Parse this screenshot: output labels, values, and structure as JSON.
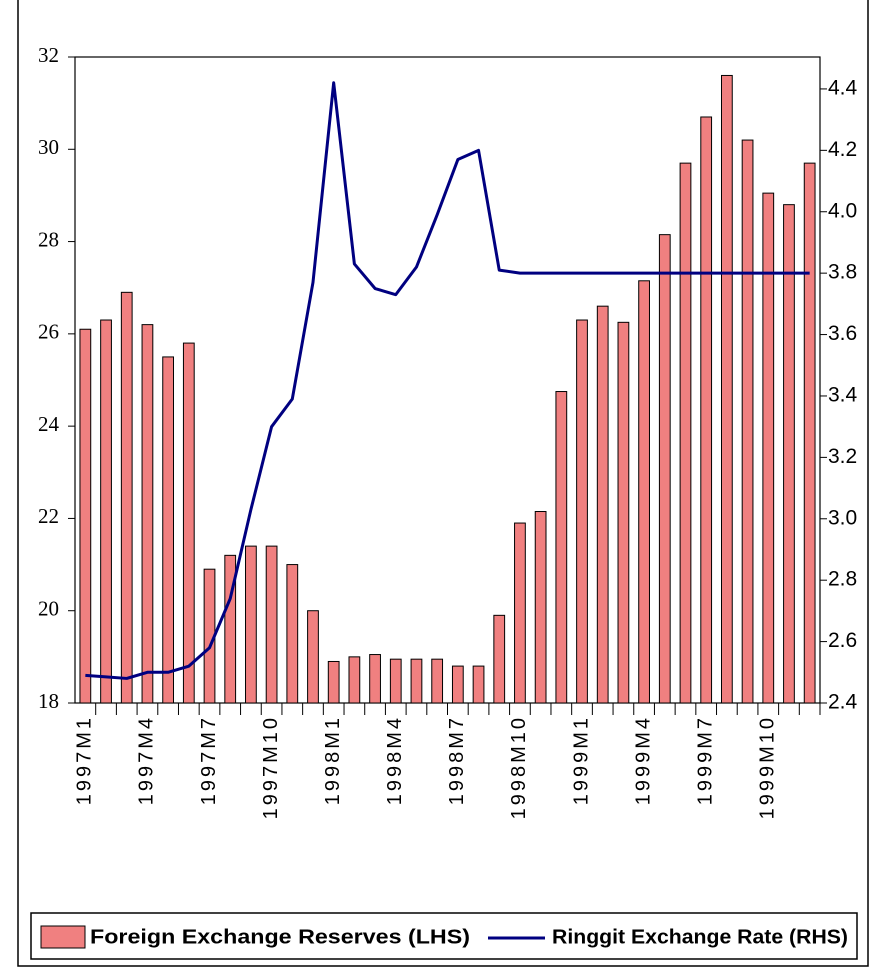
{
  "chart_data": {
    "type": "bar_line",
    "categories": [
      "1997M1",
      null,
      null,
      "1997M4",
      null,
      null,
      "1997M7",
      null,
      null,
      "1997M10",
      null,
      null,
      "1998M1",
      null,
      null,
      "1998M4",
      null,
      null,
      "1998M7",
      null,
      null,
      "1998M10",
      null,
      null,
      "1999M1",
      null,
      null,
      "1999M4",
      null,
      null,
      "1999M7",
      null,
      null,
      "1999M10",
      null,
      null
    ],
    "series": [
      {
        "name": "Foreign Exchange Reserves (LHS)",
        "type": "bar",
        "color": "#f08080",
        "axis": "y",
        "values": [
          26.1,
          26.3,
          26.9,
          26.2,
          25.5,
          25.8,
          20.9,
          21.2,
          21.4,
          21.4,
          21.0,
          20.0,
          18.9,
          19.0,
          19.05,
          18.95,
          18.95,
          18.95,
          18.8,
          18.8,
          19.9,
          21.9,
          22.15,
          24.75,
          26.3,
          26.6,
          26.25,
          27.15,
          28.15,
          29.7,
          30.7,
          31.6,
          30.2,
          29.05,
          28.8,
          29.7
        ]
      },
      {
        "name": "Ringgit Exchange Rate (RHS)",
        "type": "line",
        "color": "#000080",
        "axis": "y2",
        "values": [
          2.49,
          2.485,
          2.48,
          2.5,
          2.5,
          2.52,
          2.58,
          2.74,
          3.03,
          3.3,
          3.39,
          3.77,
          4.42,
          3.83,
          3.75,
          3.73,
          3.82,
          3.99,
          4.17,
          4.2,
          3.81,
          3.8,
          3.8,
          3.8,
          3.8,
          3.8,
          3.8,
          3.8,
          3.8,
          3.8,
          3.8,
          3.8,
          3.8,
          3.8,
          3.8,
          3.8
        ]
      }
    ],
    "ylim": [
      18,
      32
    ],
    "yticks": [
      18,
      20,
      22,
      24,
      26,
      28,
      30,
      32
    ],
    "y2lim": [
      2.4,
      4.504
    ],
    "y2ticks": [
      2.4,
      2.6,
      2.8,
      {
        "value": 3,
        "label": "3.0"
      },
      3.2,
      3.4,
      3.6,
      3.8,
      {
        "value": 4,
        "label": "4.0"
      },
      4.2,
      4.4
    ],
    "legend": "bottom"
  }
}
